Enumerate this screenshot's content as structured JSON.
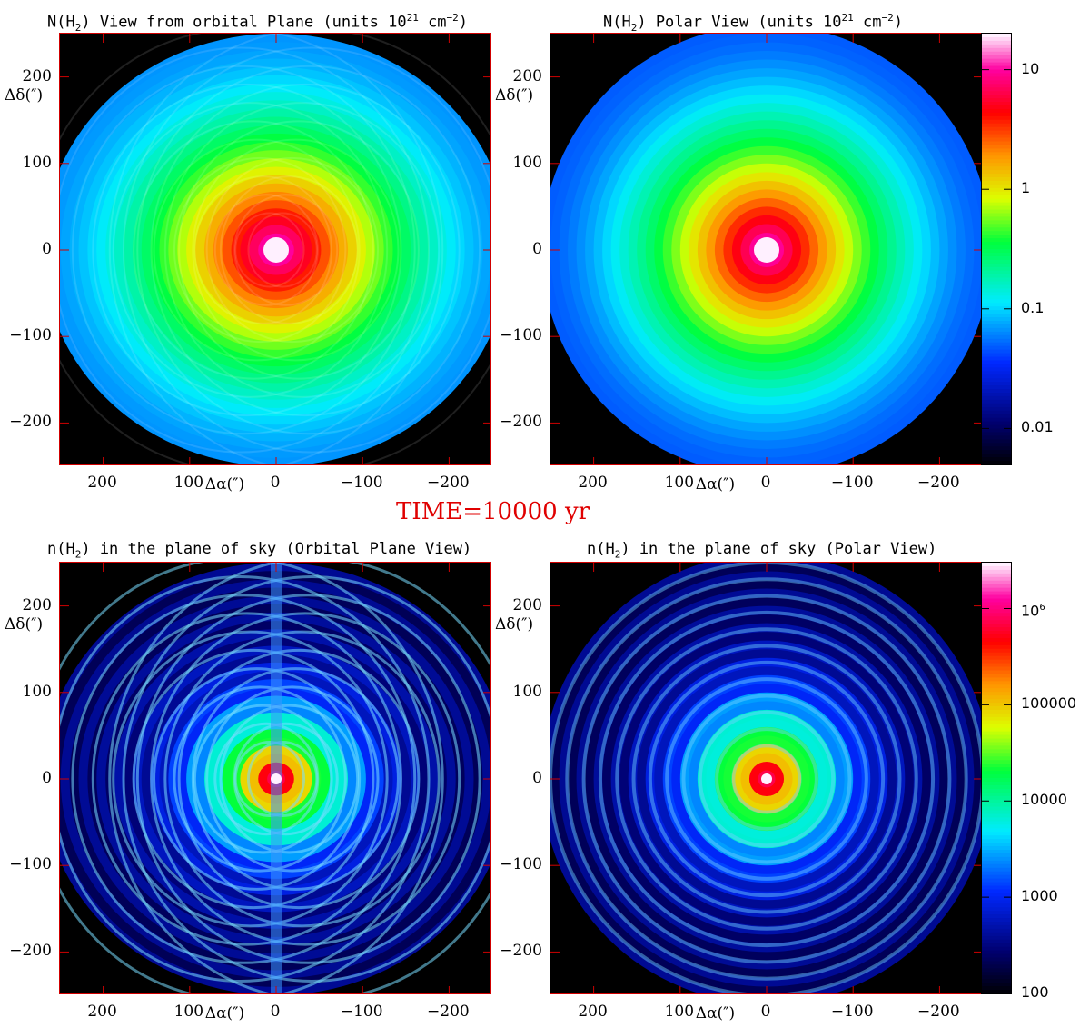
{
  "time_banner": "TIME=10000 yr",
  "panels": [
    {
      "title_parts": [
        "N(H",
        "2",
        ") View from orbital Plane (units 10",
        "21",
        " cm",
        "−2",
        ")"
      ],
      "xlabel": "Δα(″)",
      "ylabel": "Δδ(″)"
    },
    {
      "title_parts": [
        "N(H",
        "2",
        ") Polar View (units 10",
        "21",
        " cm",
        "−2",
        ")"
      ]
    },
    {
      "title_parts": [
        "n(H",
        "2",
        ") in the plane of sky (Orbital Plane View)"
      ],
      "xlabel": "Δα(″)",
      "ylabel": "Δδ(″)"
    },
    {
      "title_parts": [
        "n(H",
        "2",
        ") in the plane of sky (Polar View)"
      ]
    }
  ],
  "colorbars": [
    {
      "ticks": [
        {
          "label": "10",
          "value": 10
        },
        {
          "label": "1",
          "value": 1
        },
        {
          "label": "0.1",
          "value": 0.1
        },
        {
          "label": "0.01",
          "value": 0.01
        }
      ]
    },
    {
      "ticks": [
        {
          "label": "10",
          "sup": "6",
          "value": 1000000
        },
        {
          "label": "100000",
          "value": 100000
        },
        {
          "label": "10000",
          "value": 10000
        },
        {
          "label": "1000",
          "value": 1000
        },
        {
          "label": "100",
          "value": 100
        }
      ]
    }
  ],
  "chart_data": [
    {
      "type": "heatmap",
      "title": "N(H2) View from orbital Plane (units 10^21 cm^-2)",
      "xlabel": "Δα(″)",
      "ylabel": "Δδ(″)",
      "xlim": [
        250,
        -250
      ],
      "ylim": [
        -250,
        250
      ],
      "xticks": [
        200,
        100,
        0,
        -100,
        -200
      ],
      "yticks": [
        200,
        100,
        0,
        -100,
        -200
      ],
      "xtick_labels": [
        "200",
        "100",
        "0",
        "−100",
        "−200"
      ],
      "ytick_labels": [
        "200",
        "100",
        "0",
        "−100",
        "−200"
      ],
      "colorscale": "log",
      "crange": [
        0.005,
        20
      ],
      "peak_at": [
        0,
        0
      ],
      "peak_value": 20,
      "edge_value": 0.07,
      "morphology": "elliptical"
    },
    {
      "type": "heatmap",
      "title": "N(H2) Polar View (units 10^21 cm^-2)",
      "xlim": [
        250,
        -250
      ],
      "ylim": [
        -250,
        250
      ],
      "xticks": [
        200,
        100,
        0,
        -100,
        -200
      ],
      "yticks": [
        200,
        100,
        0,
        -100,
        -200
      ],
      "colorscale": "log",
      "crange": [
        0.005,
        20
      ],
      "colorbar_ticks": [
        10,
        1,
        0.1,
        0.01
      ],
      "peak_at": [
        0,
        0
      ],
      "peak_value": 20,
      "edge_value": 0.05,
      "morphology": "circular"
    },
    {
      "type": "heatmap",
      "title": "n(H2) in the plane of sky (Orbital Plane View)",
      "xlabel": "Δα(″)",
      "ylabel": "Δδ(″)",
      "xlim": [
        250,
        -250
      ],
      "ylim": [
        -250,
        250
      ],
      "xticks": [
        200,
        100,
        0,
        -100,
        -200
      ],
      "yticks": [
        200,
        100,
        0,
        -100,
        -200
      ],
      "colorscale": "log",
      "crange": [
        100,
        3000000
      ],
      "peak_at": [
        0,
        0
      ],
      "peak_value": 3000000,
      "edge_value": 300,
      "morphology": "overlapping elliptical shells"
    },
    {
      "type": "heatmap",
      "title": "n(H2) in the plane of sky (Polar View)",
      "xlim": [
        250,
        -250
      ],
      "ylim": [
        -250,
        250
      ],
      "xticks": [
        200,
        100,
        0,
        -100,
        -200
      ],
      "yticks": [
        200,
        100,
        0,
        -100,
        -200
      ],
      "colorscale": "log",
      "crange": [
        100,
        3000000
      ],
      "colorbar_ticks": [
        1000000,
        100000,
        10000,
        1000,
        100
      ],
      "peak_at": [
        0,
        0
      ],
      "peak_value": 3000000,
      "edge_value": 300,
      "morphology": "concentric circular shells"
    }
  ]
}
